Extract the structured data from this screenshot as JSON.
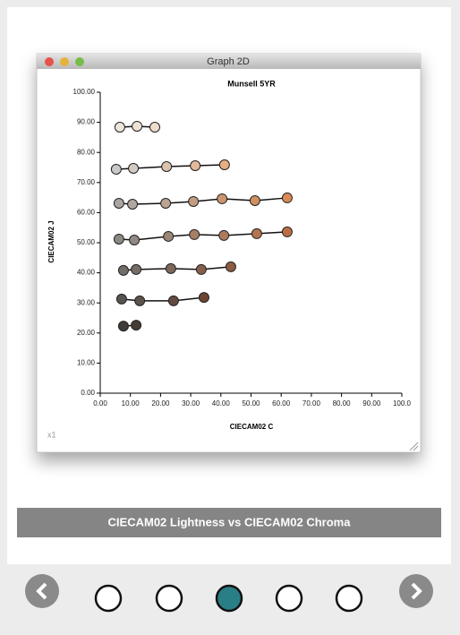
{
  "window_title": "Graph 2D",
  "window_corner_label": "x1",
  "caption": "CIECAM02 Lightness vs CIECAM02 Chroma",
  "chart_data": {
    "type": "line",
    "title": "Munsell 5YR",
    "x_label": "CIECAM02 C",
    "y_label": "CIECAM02 J",
    "xlim": [
      0,
      100
    ],
    "ylim": [
      0,
      100
    ],
    "xticks": [
      {
        "value": 0,
        "label": "0.00"
      },
      {
        "value": 10,
        "label": "10.00"
      },
      {
        "value": 20,
        "label": "20.00"
      },
      {
        "value": 30,
        "label": "30.00"
      },
      {
        "value": 40,
        "label": "40.00"
      },
      {
        "value": 50,
        "label": "50.00"
      },
      {
        "value": 60,
        "label": "60.00"
      },
      {
        "value": 70,
        "label": "70.00"
      },
      {
        "value": 80,
        "label": "80.00"
      },
      {
        "value": 90,
        "label": "90.00"
      },
      {
        "value": 100,
        "label": "100.0"
      }
    ],
    "yticks": [
      {
        "value": 0,
        "label": "0.00"
      },
      {
        "value": 10,
        "label": "10.00"
      },
      {
        "value": 20,
        "label": "20.00"
      },
      {
        "value": 30,
        "label": "30.00"
      },
      {
        "value": 40,
        "label": "40.00"
      },
      {
        "value": 50,
        "label": "50.00"
      },
      {
        "value": 60,
        "label": "60.00"
      },
      {
        "value": 70,
        "label": "70.00"
      },
      {
        "value": 80,
        "label": "80.00"
      },
      {
        "value": 90,
        "label": "90.00"
      },
      {
        "value": 100,
        "label": "100.00"
      }
    ],
    "line_color": "#111111",
    "series": [
      {
        "x": [
          6.5,
          12.2,
          18.1
        ],
        "values": [
          88.4,
          88.7,
          88.4
        ],
        "point_colors": [
          "#ebe5dc",
          "#eee3d6",
          "#efdccb"
        ]
      },
      {
        "x": [
          5.3,
          11.0,
          22.0,
          31.5,
          41.2
        ],
        "values": [
          74.4,
          74.7,
          75.3,
          75.6,
          75.9
        ],
        "point_colors": [
          "#cac8c6",
          "#d3cbc3",
          "#dcc3ae",
          "#e3b899",
          "#e9ad82"
        ]
      },
      {
        "x": [
          6.2,
          10.7,
          21.7,
          30.9,
          40.4,
          51.3,
          62.0
        ],
        "values": [
          63.1,
          62.8,
          63.1,
          63.7,
          64.6,
          64.0,
          64.9
        ],
        "point_colors": [
          "#aaa6a2",
          "#b0a7a0",
          "#b9a393",
          "#c49c81",
          "#cc956f",
          "#d28f61",
          "#d88954"
        ]
      },
      {
        "x": [
          6.2,
          11.3,
          22.6,
          31.2,
          41.0,
          51.9,
          62.0
        ],
        "values": [
          51.2,
          50.9,
          52.1,
          52.7,
          52.4,
          53.0,
          53.6
        ],
        "point_colors": [
          "#8c8884",
          "#928984",
          "#9c8576",
          "#a67f67",
          "#ad7a5c",
          "#b47450",
          "#bb6f45"
        ]
      },
      {
        "x": [
          7.7,
          11.9,
          23.4,
          33.5,
          43.3
        ],
        "values": [
          40.8,
          41.1,
          41.4,
          41.1,
          42.0
        ],
        "point_colors": [
          "#716d69",
          "#766d67",
          "#7e675b",
          "#87604d",
          "#8e5a42"
        ]
      },
      {
        "x": [
          7.1,
          13.1,
          24.3,
          34.4
        ],
        "values": [
          31.3,
          30.7,
          30.7,
          31.8
        ],
        "point_colors": [
          "#57534f",
          "#5c524c",
          "#644b40",
          "#6c4433"
        ]
      },
      {
        "x": [
          7.7,
          11.9
        ],
        "values": [
          22.3,
          22.6
        ],
        "point_colors": [
          "#3f3c3a",
          "#463c36"
        ]
      }
    ]
  }
}
